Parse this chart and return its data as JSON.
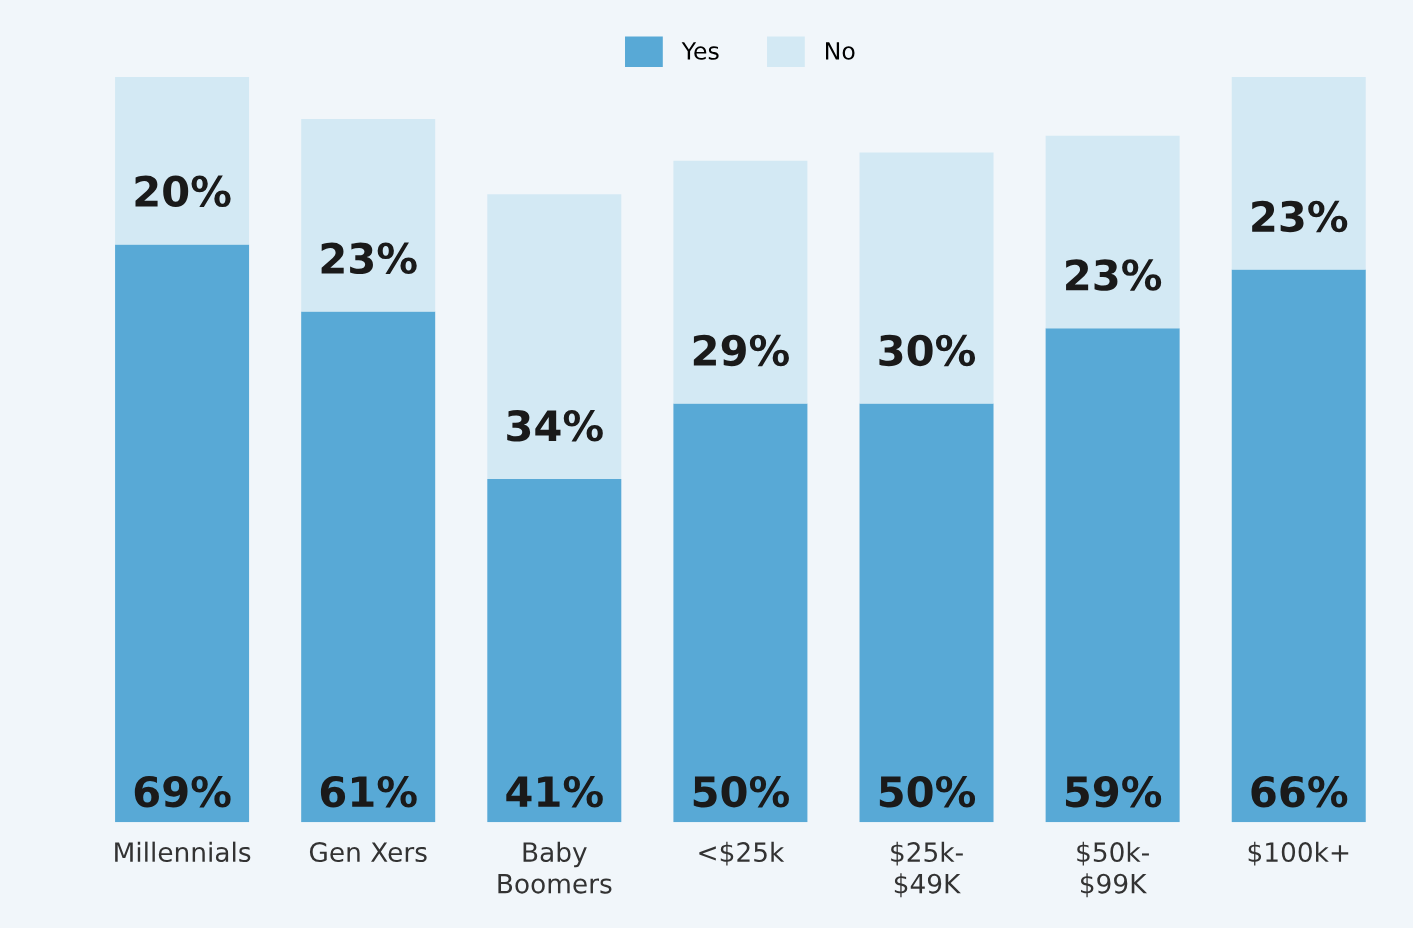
{
  "chart_data": {
    "type": "bar",
    "stacked": true,
    "categories": [
      "Millennials",
      "Gen Xers",
      "Baby\nBoomers",
      "<$25k",
      "$25k-\n$49K",
      "$50k-\n$99K",
      "$100k+"
    ],
    "series": [
      {
        "name": "Yes",
        "color": "#58a9d6",
        "values": [
          69,
          61,
          41,
          50,
          50,
          59,
          66
        ],
        "value_labels": [
          "69%",
          "61%",
          "41%",
          "50%",
          "50%",
          "59%",
          "66%"
        ]
      },
      {
        "name": "No",
        "color": "#d3e9f4",
        "values": [
          20,
          23,
          34,
          29,
          30,
          23,
          23
        ],
        "value_labels": [
          "20%",
          "23%",
          "34%",
          "29%",
          "30%",
          "23%",
          "23%"
        ]
      }
    ],
    "legend": "top",
    "grid": false
  }
}
